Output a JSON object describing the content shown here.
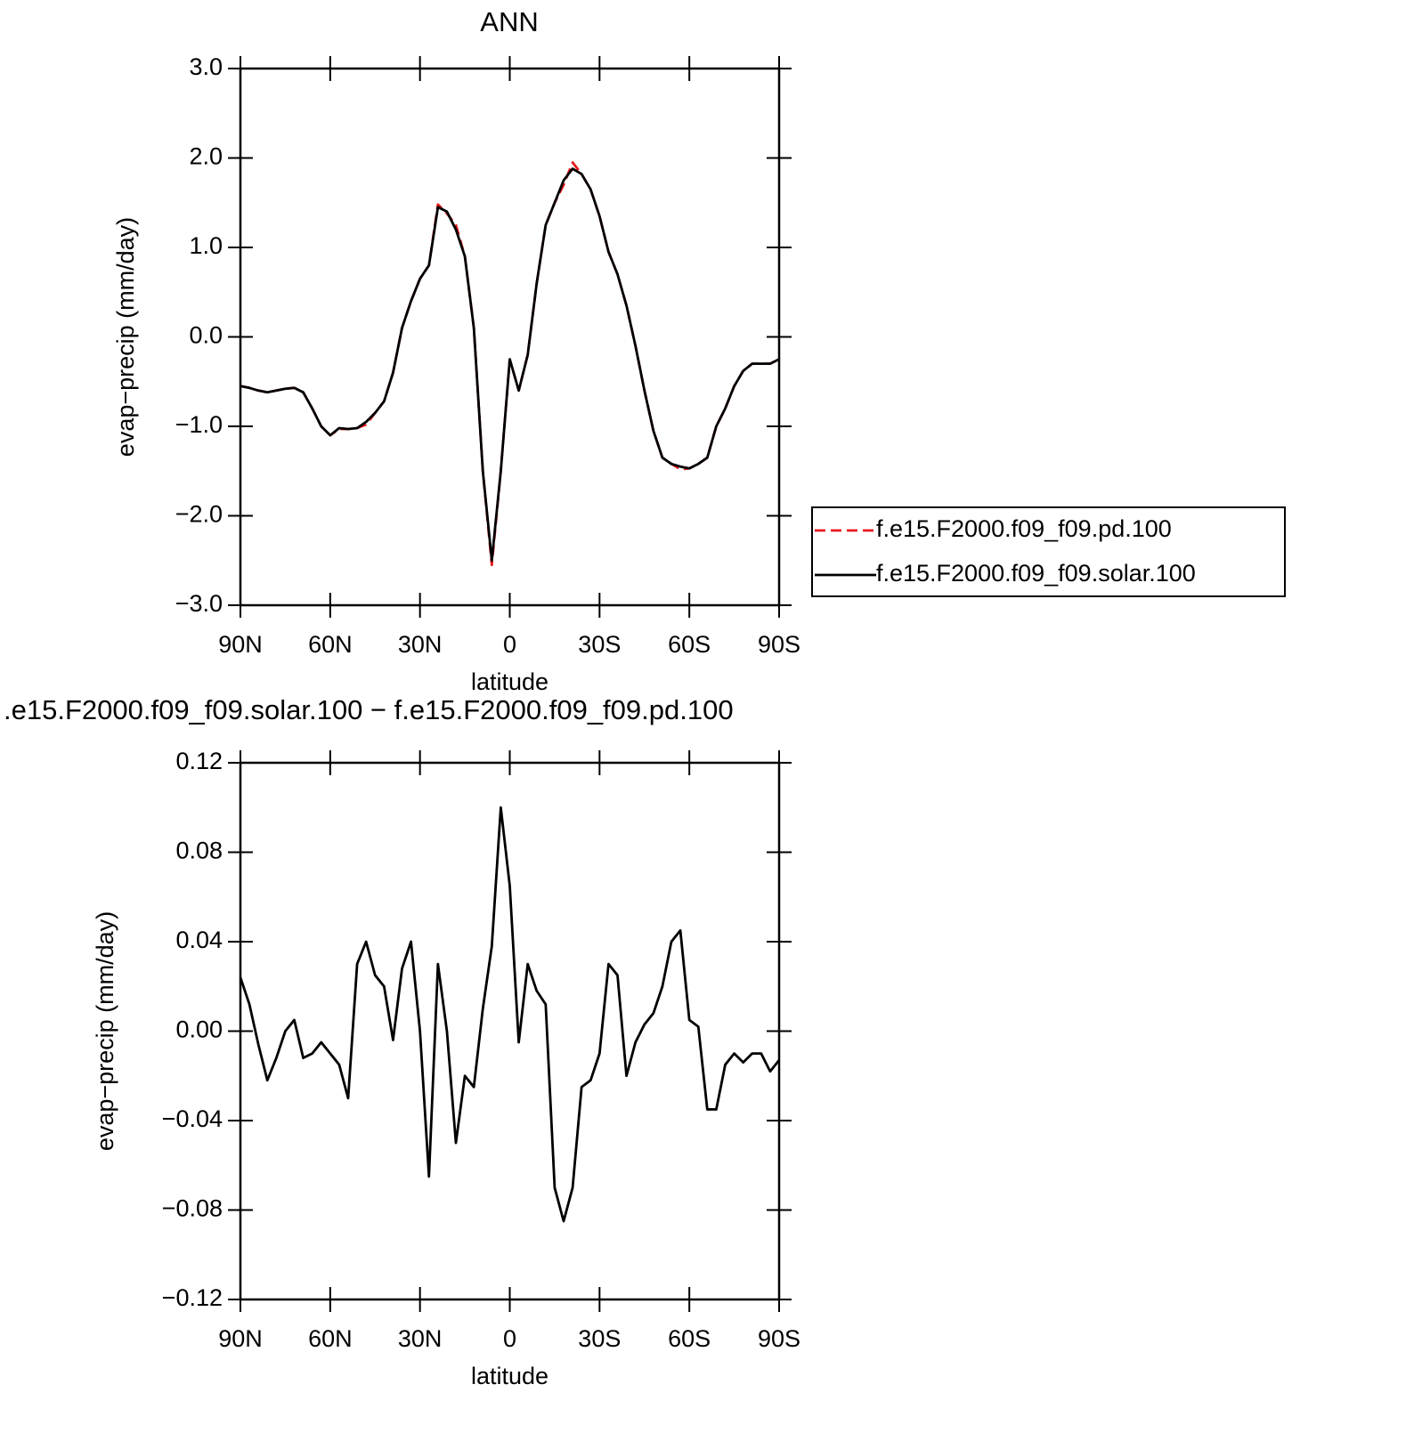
{
  "chart_data": [
    {
      "type": "line",
      "title": "ANN",
      "xlabel": "latitude",
      "ylabel": "evap−precip (mm/day)",
      "x": [
        90,
        87,
        84,
        81,
        78,
        75,
        72,
        69,
        66,
        63,
        60,
        57,
        54,
        51,
        48,
        45,
        42,
        39,
        36,
        33,
        30,
        27,
        24,
        21,
        18,
        15,
        12,
        9,
        6,
        3,
        0,
        -3,
        -6,
        -9,
        -12,
        -15,
        -18,
        -21,
        -24,
        -27,
        -30,
        -33,
        -36,
        -39,
        -42,
        -45,
        -48,
        -51,
        -54,
        -57,
        -60,
        -63,
        -66,
        -69,
        -72,
        -75,
        -78,
        -81,
        -84,
        -87,
        -90
      ],
      "series": [
        {
          "name": "f.e15.F2000.f09_f09.pd.100",
          "color": "#e41a1c",
          "dash": true,
          "values": [
            -0.55,
            -0.57,
            -0.6,
            -0.62,
            -0.6,
            -0.58,
            -0.57,
            -0.62,
            -0.8,
            -1.0,
            -1.1,
            -1.03,
            -1.03,
            -1.02,
            -0.98,
            -0.85,
            -0.72,
            -0.4,
            0.1,
            0.4,
            0.65,
            0.8,
            1.48,
            1.38,
            1.25,
            0.9,
            0.1,
            -1.5,
            -2.55,
            -1.5,
            -0.25,
            -0.6,
            -0.2,
            0.6,
            1.25,
            1.5,
            1.7,
            1.95,
            1.82,
            1.65,
            1.35,
            0.95,
            0.7,
            0.35,
            -0.1,
            -0.6,
            -1.05,
            -1.35,
            -1.42,
            -1.48,
            -1.47,
            -1.42,
            -1.35,
            -1.0,
            -0.8,
            -0.55,
            -0.38,
            -0.3,
            -0.3,
            -0.3,
            -0.25
          ]
        },
        {
          "name": "f.e15.F2000.f09_f09.solar.100",
          "color": "#000000",
          "dash": false,
          "values": [
            -0.55,
            -0.57,
            -0.6,
            -0.62,
            -0.6,
            -0.58,
            -0.57,
            -0.62,
            -0.8,
            -1.0,
            -1.1,
            -1.02,
            -1.03,
            -1.02,
            -0.95,
            -0.85,
            -0.72,
            -0.4,
            0.1,
            0.4,
            0.65,
            0.8,
            1.45,
            1.4,
            1.2,
            0.9,
            0.1,
            -1.5,
            -2.5,
            -1.5,
            -0.25,
            -0.6,
            -0.2,
            0.6,
            1.25,
            1.5,
            1.75,
            1.88,
            1.82,
            1.65,
            1.35,
            0.95,
            0.7,
            0.35,
            -0.1,
            -0.6,
            -1.05,
            -1.35,
            -1.42,
            -1.45,
            -1.47,
            -1.42,
            -1.35,
            -1.0,
            -0.8,
            -0.55,
            -0.38,
            -0.3,
            -0.3,
            -0.3,
            -0.25
          ]
        }
      ],
      "xlim": [
        90,
        -90
      ],
      "xticks": [
        {
          "value": 90,
          "label": "90N"
        },
        {
          "value": 60,
          "label": "60N"
        },
        {
          "value": 30,
          "label": "30N"
        },
        0,
        {
          "value": -30,
          "label": "30S"
        },
        {
          "value": -60,
          "label": "60S"
        },
        {
          "value": -90,
          "label": "90S"
        }
      ],
      "ylim": [
        -3,
        3
      ],
      "yticks": [
        {
          "value": -3,
          "label": "−3.0"
        },
        {
          "value": -2,
          "label": "−2.0"
        },
        {
          "value": -1,
          "label": "−1.0"
        },
        {
          "value": 0,
          "label": "0.0"
        },
        {
          "value": 1,
          "label": "1.0"
        },
        {
          "value": 2,
          "label": "2.0"
        },
        {
          "value": 3,
          "label": "3.0"
        }
      ],
      "legend": "right"
    },
    {
      "type": "line",
      "title": ".e15.F2000.f09_f09.solar.100 − f.e15.F2000.f09_f09.pd.100",
      "xlabel": "latitude",
      "ylabel": "evap−precip (mm/day)",
      "x": [
        90,
        87,
        84,
        81,
        78,
        75,
        72,
        69,
        66,
        63,
        60,
        57,
        54,
        51,
        48,
        45,
        42,
        39,
        36,
        33,
        30,
        27,
        24,
        21,
        18,
        15,
        12,
        9,
        6,
        3,
        0,
        -3,
        -6,
        -9,
        -12,
        -15,
        -18,
        -21,
        -24,
        -27,
        -30,
        -33,
        -36,
        -39,
        -42,
        -45,
        -48,
        -51,
        -54,
        -57,
        -60,
        -63,
        -66,
        -69,
        -72,
        -75,
        -78,
        -81,
        -84,
        -87,
        -90
      ],
      "series": [
        {
          "color": "#000000",
          "dash": false,
          "values": [
            0.024,
            0.012,
            -0.006,
            -0.022,
            -0.012,
            0.0,
            0.005,
            -0.012,
            -0.01,
            -0.005,
            -0.01,
            -0.015,
            -0.03,
            0.03,
            0.04,
            0.025,
            0.02,
            -0.004,
            0.028,
            0.04,
            0.0,
            -0.065,
            0.03,
            0.0,
            -0.05,
            -0.02,
            -0.025,
            0.01,
            0.038,
            0.1,
            0.065,
            -0.005,
            0.03,
            0.018,
            0.012,
            -0.07,
            -0.085,
            -0.07,
            -0.025,
            -0.022,
            -0.01,
            0.03,
            0.025,
            -0.02,
            -0.005,
            0.003,
            0.008,
            0.02,
            0.04,
            0.045,
            0.005,
            0.002,
            -0.035,
            -0.035,
            -0.015,
            -0.01,
            -0.014,
            -0.01,
            -0.01,
            -0.018,
            -0.013
          ]
        }
      ],
      "xlim": [
        90,
        -90
      ],
      "xticks": [
        {
          "value": 90,
          "label": "90N"
        },
        {
          "value": 60,
          "label": "60N"
        },
        {
          "value": 30,
          "label": "30N"
        },
        0,
        {
          "value": -30,
          "label": "30S"
        },
        {
          "value": -60,
          "label": "60S"
        },
        {
          "value": -90,
          "label": "90S"
        }
      ],
      "ylim": [
        -0.12,
        0.12
      ],
      "yticks": [
        {
          "value": -0.12,
          "label": "−0.12"
        },
        {
          "value": -0.08,
          "label": "−0.08"
        },
        {
          "value": -0.04,
          "label": "−0.04"
        },
        {
          "value": 0,
          "label": "0.00"
        },
        0.04,
        0.08,
        0.12
      ]
    }
  ]
}
